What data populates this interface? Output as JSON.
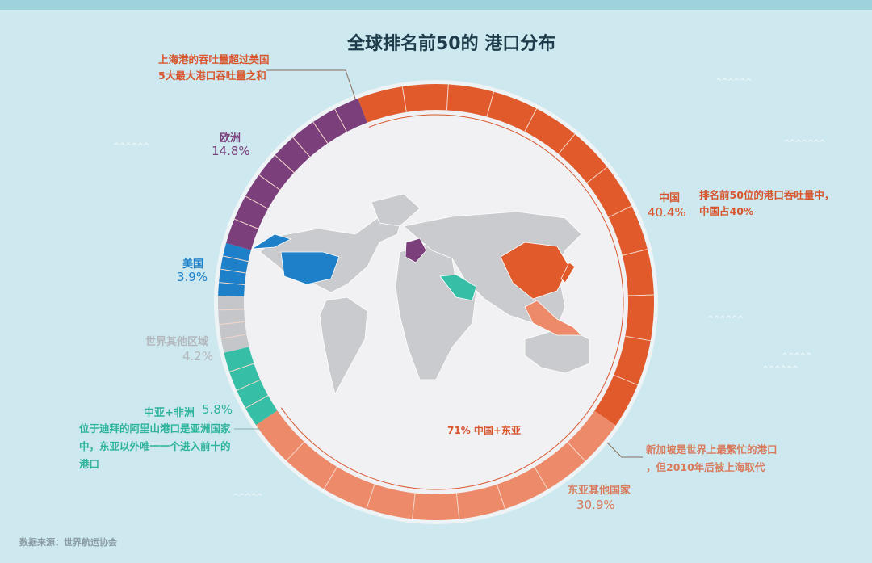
{
  "title": "全球排名前50的 港口分布",
  "source": "数据来源：世界航运协会",
  "chart_data": {
    "type": "pie",
    "title": "全球排名前50的 港口分布",
    "donut": true,
    "unit": "%",
    "slices": [
      {
        "label": "中国",
        "value": 40.4,
        "value_label": "40.4%",
        "color": "#e05a2b"
      },
      {
        "label": "东亚其他国家",
        "value": 30.9,
        "value_label": "30.9%",
        "color": "#ec8a6a"
      },
      {
        "label": "中亚+非洲",
        "value": 5.8,
        "value_label": "5.8%",
        "color": "#36bfa6"
      },
      {
        "label": "世界其他区域",
        "value": 4.2,
        "value_label": "4.2%",
        "color": "#c4c6ca"
      },
      {
        "label": "美国",
        "value": 3.9,
        "value_label": "3.9%",
        "color": "#1d80c8"
      },
      {
        "label": "欧洲",
        "value": 14.8,
        "value_label": "14.8%",
        "color": "#7b3f7c"
      }
    ],
    "combined_annotation": "71% 中国+东亚",
    "annotations": {
      "shanghai": [
        "上海港的吞吐量超过美国",
        "5大最大港口吞吐量之和"
      ],
      "china": [
        "排名前50位的港口吞吐量中，",
        "中国占40%"
      ],
      "singapore": [
        "新加坡是世界上最繁忙的港口",
        "，但2010年后被上海取代"
      ],
      "dubai": [
        "位于迪拜的阿里山港口是亚洲国家",
        "中，东亚以外唯一一个进入前十的",
        "港口"
      ]
    }
  },
  "colors": {
    "background": "#cde9ef",
    "title": "#1d3b4a",
    "map_land": "#c9cbce",
    "map_circle": "#f1f1f3"
  }
}
